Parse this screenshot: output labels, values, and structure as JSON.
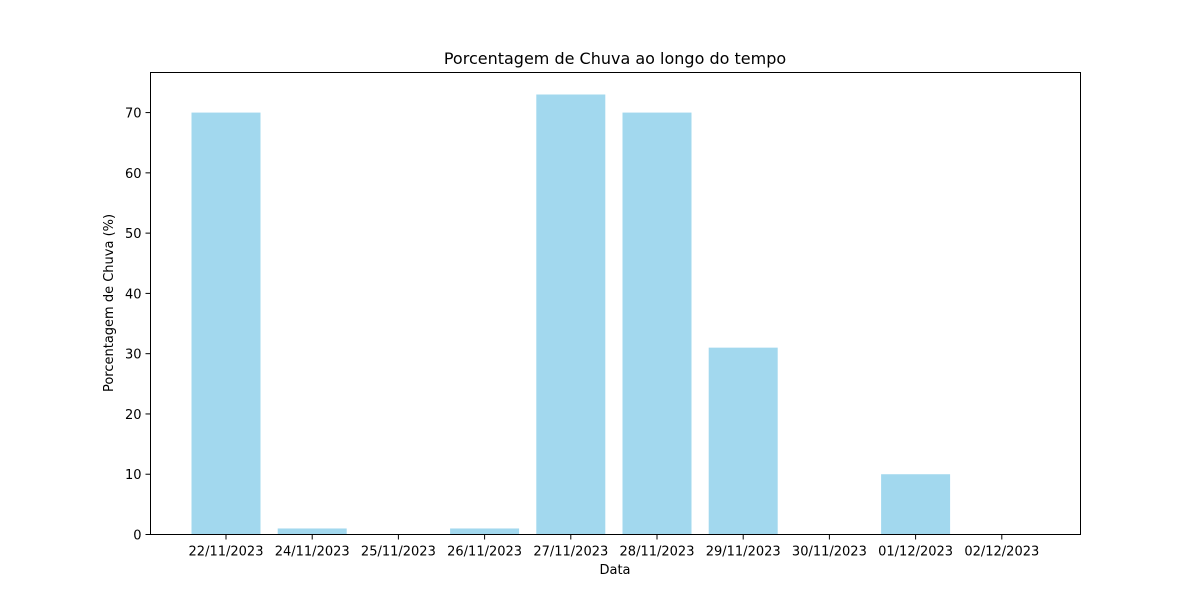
{
  "chart_data": {
    "type": "bar",
    "title": "Porcentagem de Chuva ao longo do tempo",
    "xlabel": "Data",
    "ylabel": "Porcentagem de Chuva (%)",
    "categories": [
      "22/11/2023",
      "24/11/2023",
      "25/11/2023",
      "26/11/2023",
      "27/11/2023",
      "28/11/2023",
      "29/11/2023",
      "30/11/2023",
      "01/12/2023",
      "02/12/2023"
    ],
    "values": [
      70,
      1,
      0,
      1,
      73,
      70,
      31,
      0,
      10,
      0
    ],
    "ylim": [
      0,
      76.65
    ],
    "yticks": [
      0,
      10,
      20,
      30,
      40,
      50,
      60,
      70
    ],
    "bar_color": "#a2d8ee",
    "grid": false,
    "legend": false
  }
}
